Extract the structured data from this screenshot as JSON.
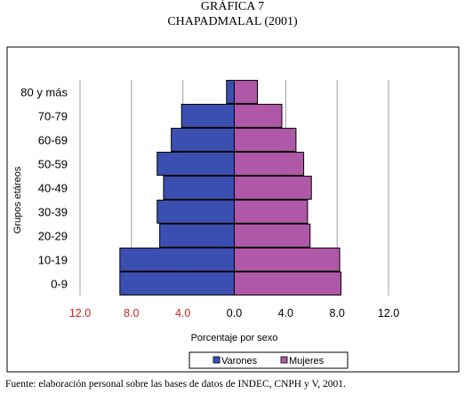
{
  "title": "GRÁFICA 7",
  "subtitle": "CHAPADMALAL (2001)",
  "source": "Fuente: elaboración personal sobre las bases de datos de INDEC, CNPH y V, 2001.",
  "chart_data": {
    "type": "bar",
    "orientation": "horizontal",
    "layout": "population-pyramid",
    "categories": [
      "0-9",
      "10-19",
      "20-29",
      "30-39",
      "40-49",
      "50-59",
      "60-69",
      "70-79",
      "80 y más"
    ],
    "series": [
      {
        "name": "Varones",
        "values": [
          8.9,
          8.9,
          5.8,
          6.0,
          5.5,
          6.0,
          4.9,
          4.1,
          0.6
        ],
        "color": "#3a4fb0"
      },
      {
        "name": "Mujeres",
        "values": [
          8.3,
          8.2,
          5.9,
          5.7,
          6.0,
          5.4,
          4.8,
          3.7,
          1.8
        ],
        "color": "#b058a8"
      }
    ],
    "xlabel": "Porcentaje por sexo",
    "ylabel": "Grupos etáreos",
    "xlim": [
      -12,
      12
    ],
    "xticks": [
      -12,
      -8,
      -4,
      0,
      4,
      8,
      12
    ],
    "xtick_labels": [
      "12.0",
      "8.0",
      "4.0",
      "0.0",
      "4.0",
      "8.0",
      "12.0"
    ],
    "xtick_label_colors": [
      "#cc2222",
      "#cc2222",
      "#cc2222",
      "#000000",
      "#000000",
      "#000000",
      "#000000"
    ],
    "grid": "vertical",
    "legend": "bottom",
    "plot_background": "#ffffff"
  }
}
